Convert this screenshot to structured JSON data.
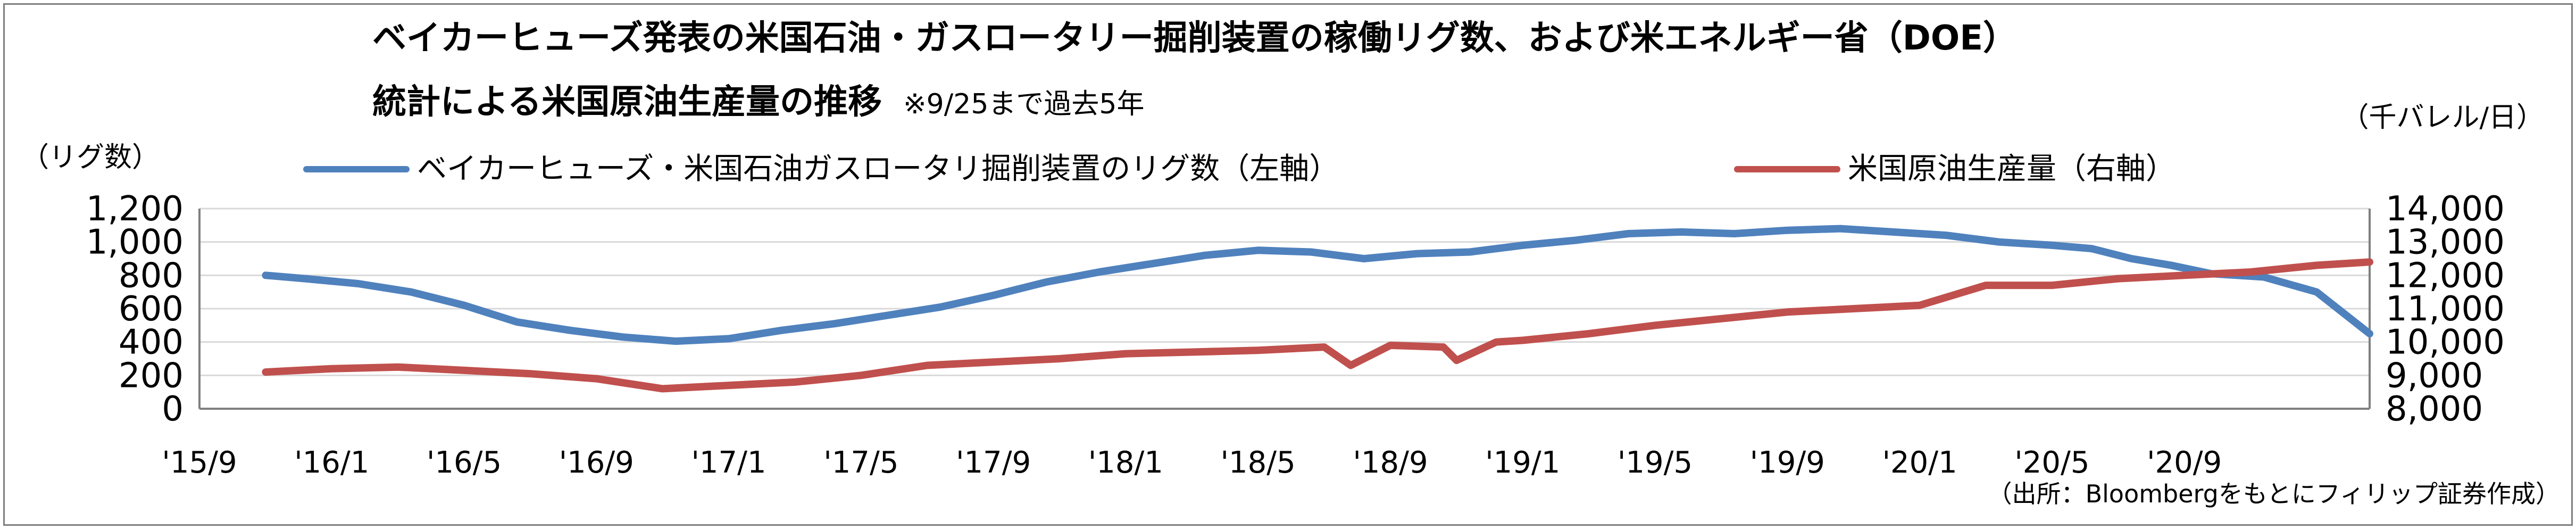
{
  "title_line1": "ベイカーヒューズ発表の米国石油・ガスロータリー掘削装置の稼働リグ数、および米エネルギー省（DOE）",
  "title_line2": "統計による米国原油生産量の推移",
  "title_note": "※9/25まで過去5年",
  "unit_left": "（リグ数）",
  "unit_right": "（千バレル/日）",
  "source": "（出所：Bloombergをもとにフィリップ証券作成）",
  "colors": {
    "rigs": "#4f81bd",
    "production": "#c0504d",
    "grid": "#d9d9d9",
    "axis": "#7f7f7f"
  },
  "chart_data": {
    "type": "line",
    "title": "ベイカーヒューズ発表の米国石油・ガスロータリー掘削装置の稼働リグ数、および米エネルギー省（DOE）統計による米国原油生産量の推移",
    "x_tick_labels": [
      "'15/9",
      "'16/1",
      "'16/5",
      "'16/9",
      "'17/1",
      "'17/5",
      "'17/9",
      "'18/1",
      "'18/5",
      "'18/9",
      "'19/1",
      "'19/5",
      "'19/9",
      "'20/1",
      "'20/5",
      "'20/9"
    ],
    "x_range_months": [
      0,
      16.4
    ],
    "y_left": {
      "label": "（リグ数）",
      "range": [
        0,
        1200
      ],
      "ticks": [
        "0",
        "200",
        "400",
        "600",
        "800",
        "1,000",
        "1,200"
      ]
    },
    "y_right": {
      "label": "（千バレル/日）",
      "range": [
        8000,
        14000
      ],
      "ticks": [
        "8,000",
        "9,000",
        "10,000",
        "11,000",
        "12,000",
        "13,000",
        "14,000"
      ]
    },
    "grid": true,
    "legend_position": "top",
    "series": [
      {
        "name": "ベイカーヒューズ・米国石油ガスロータリ掘削装置のリグ数（左軸）",
        "axis": "left",
        "x": [
          0.5,
          0.8,
          1.2,
          1.6,
          2.0,
          2.4,
          2.8,
          3.2,
          3.6,
          4.0,
          4.4,
          4.8,
          5.2,
          5.6,
          6.0,
          6.4,
          6.8,
          7.2,
          7.6,
          8.0,
          8.4,
          8.8,
          9.2,
          9.6,
          10.0,
          10.4,
          10.8,
          11.2,
          11.6,
          12.0,
          12.4,
          12.8,
          13.2,
          13.6,
          14.0,
          14.3,
          14.6,
          14.9,
          15.2,
          15.6,
          16.0,
          16.4
        ],
        "values": [
          800,
          780,
          750,
          700,
          620,
          520,
          470,
          430,
          405,
          420,
          470,
          510,
          560,
          610,
          680,
          760,
          820,
          870,
          920,
          950,
          940,
          900,
          930,
          940,
          980,
          1010,
          1050,
          1060,
          1050,
          1070,
          1080,
          1060,
          1040,
          1000,
          980,
          960,
          900,
          860,
          810,
          790,
          700,
          450
        ]
      },
      {
        "name": "米国原油生産量（右軸）",
        "axis": "right",
        "x": [
          0.5,
          1.0,
          1.5,
          2.0,
          2.5,
          3.0,
          3.5,
          4.0,
          4.5,
          5.0,
          5.5,
          6.0,
          6.5,
          7.0,
          7.5,
          8.0,
          8.5,
          8.7,
          9.0,
          9.4,
          9.5,
          9.8,
          10.0,
          10.5,
          11.0,
          11.5,
          12.0,
          12.5,
          13.0,
          13.5,
          14.0,
          14.5,
          15.0,
          15.5,
          16.0,
          16.4
        ],
        "values": [
          9100,
          9200,
          9250,
          9150,
          9050,
          8900,
          8600,
          8700,
          8800,
          9000,
          9300,
          9400,
          9500,
          9650,
          9700,
          9750,
          9850,
          9300,
          9900,
          9850,
          9450,
          10000,
          10050,
          10250,
          10500,
          10700,
          10900,
          11000,
          11100,
          11700,
          11700,
          11900,
          12000,
          12100,
          12300,
          12400
        ]
      }
    ]
  }
}
